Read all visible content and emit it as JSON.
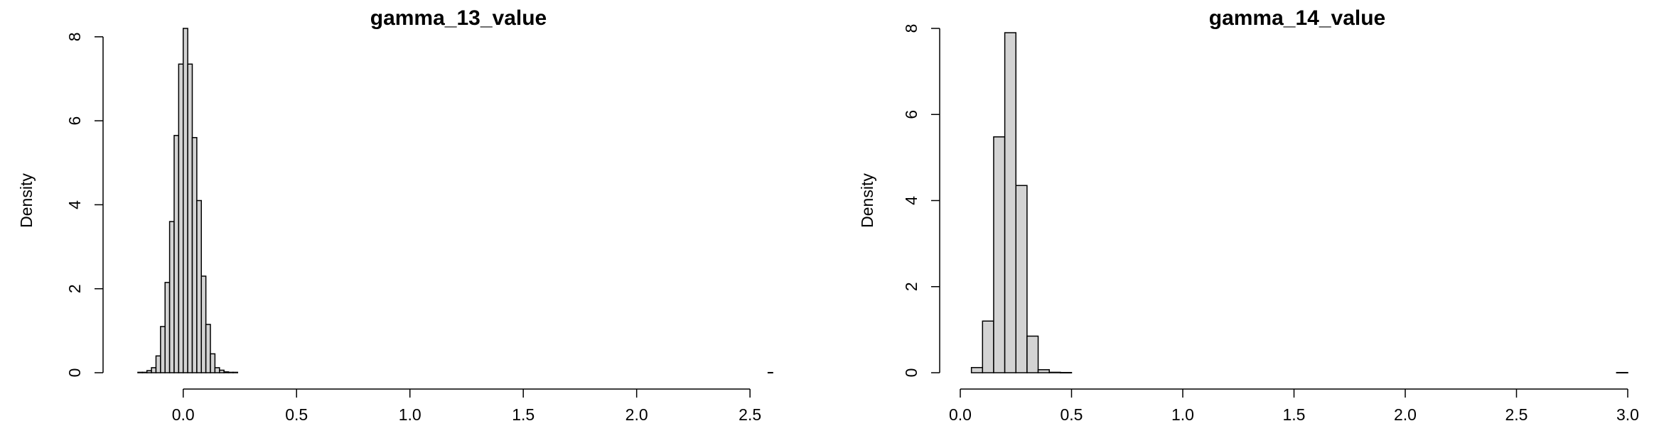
{
  "chart_data": [
    {
      "type": "bar",
      "title": "gamma_13_value",
      "xlabel": "",
      "ylabel": "Density",
      "xlim": [
        -0.25,
        2.65
      ],
      "ylim": [
        0,
        8.2
      ],
      "xticks": [
        "0.0",
        "0.5",
        "1.0",
        "1.5",
        "2.0",
        "2.5"
      ],
      "xtick_values": [
        0.0,
        0.5,
        1.0,
        1.5,
        2.0,
        2.5
      ],
      "yticks": [
        "0",
        "2",
        "4",
        "6",
        "8"
      ],
      "ytick_values": [
        0,
        2,
        4,
        6,
        8
      ],
      "grid": false,
      "bin_width": 0.02,
      "bins": [
        [
          -0.2,
          0.01
        ],
        [
          -0.18,
          0.01
        ],
        [
          -0.16,
          0.05
        ],
        [
          -0.14,
          0.12
        ],
        [
          -0.12,
          0.4
        ],
        [
          -0.1,
          1.1
        ],
        [
          -0.08,
          2.15
        ],
        [
          -0.06,
          3.6
        ],
        [
          -0.04,
          5.65
        ],
        [
          -0.02,
          7.35
        ],
        [
          0.0,
          8.2
        ],
        [
          0.02,
          7.35
        ],
        [
          0.04,
          5.6
        ],
        [
          0.06,
          4.1
        ],
        [
          0.08,
          2.3
        ],
        [
          0.1,
          1.15
        ],
        [
          0.12,
          0.45
        ],
        [
          0.14,
          0.12
        ],
        [
          0.16,
          0.06
        ],
        [
          0.18,
          0.02
        ],
        [
          0.2,
          0.01
        ],
        [
          0.22,
          0.01
        ],
        [
          2.58,
          0.005
        ]
      ]
    },
    {
      "type": "bar",
      "title": "gamma_14_value",
      "xlabel": "",
      "ylabel": "Density",
      "xlim": [
        0.0,
        3.0
      ],
      "ylim": [
        0,
        8.0
      ],
      "xticks": [
        "0.0",
        "0.5",
        "1.0",
        "1.5",
        "2.0",
        "2.5",
        "3.0"
      ],
      "xtick_values": [
        0.0,
        0.5,
        1.0,
        1.5,
        2.0,
        2.5,
        3.0
      ],
      "yticks": [
        "0",
        "2",
        "4",
        "6",
        "8"
      ],
      "ytick_values": [
        0,
        2,
        4,
        6,
        8
      ],
      "grid": false,
      "bin_width": 0.05,
      "bins": [
        [
          0.05,
          0.12
        ],
        [
          0.1,
          1.2
        ],
        [
          0.15,
          5.48
        ],
        [
          0.2,
          7.9
        ],
        [
          0.25,
          4.35
        ],
        [
          0.3,
          0.85
        ],
        [
          0.35,
          0.07
        ],
        [
          0.4,
          0.01
        ],
        [
          0.45,
          0.005
        ],
        [
          2.95,
          0.005
        ]
      ]
    }
  ]
}
